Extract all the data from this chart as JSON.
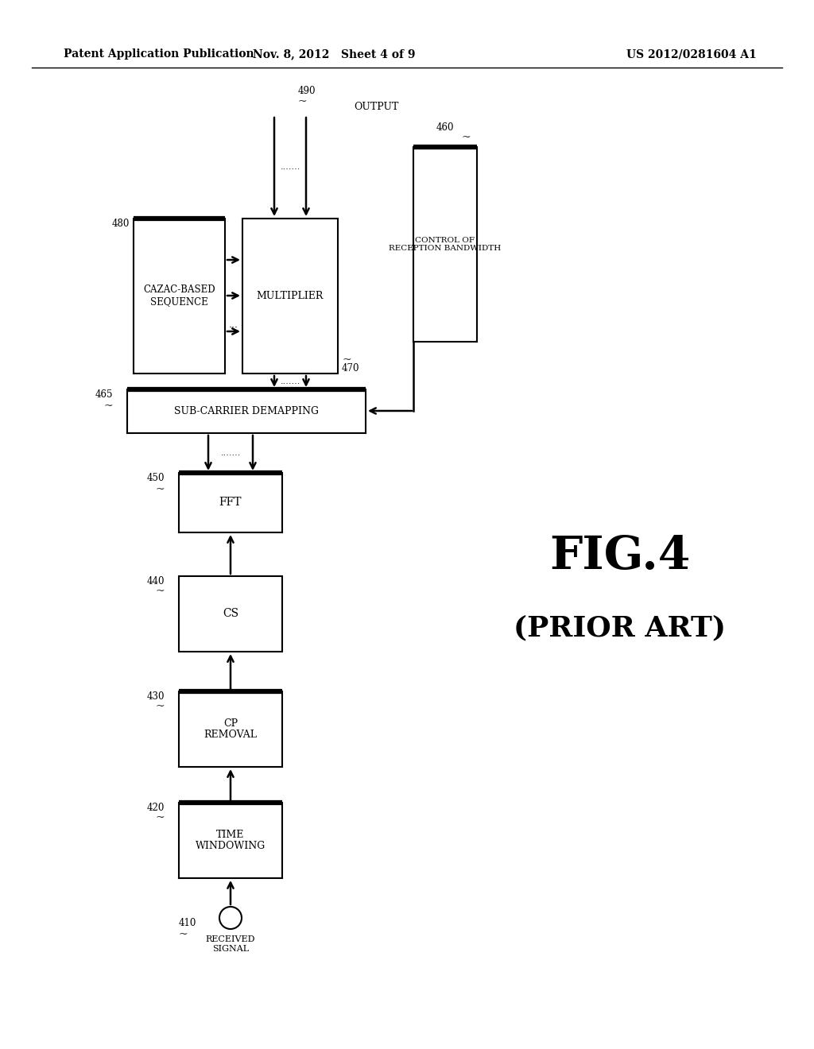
{
  "bg_color": "#ffffff",
  "header_left": "Patent Application Publication",
  "header_mid": "Nov. 8, 2012   Sheet 4 of 9",
  "header_right": "US 2012/0281604 A1",
  "fig_label": "FIG.4",
  "fig_sublabel": "(PRIOR ART)"
}
